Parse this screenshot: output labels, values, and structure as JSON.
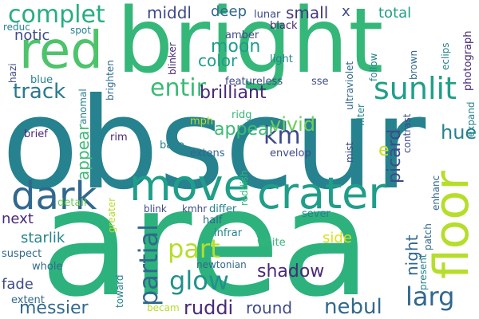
{
  "palette": {
    "dark_purple": "#482878",
    "deep_blue": "#3e4a89",
    "blue": "#31688e",
    "teal_blue": "#26828e",
    "teal": "#1f9e89",
    "green": "#35b779",
    "light_green": "#6ece58",
    "yellow_green": "#b5de2b",
    "bright_yellow": "#d8e219"
  },
  "words": [
    {
      "text": "obscur",
      "color": "#26828e"
    },
    {
      "text": "area",
      "color": "#2db27d"
    },
    {
      "text": "bright",
      "color": "#35b779"
    },
    {
      "text": "red",
      "color": "#4ec36b"
    },
    {
      "text": "floor",
      "color": "#b5de2b"
    },
    {
      "text": "crater",
      "color": "#1f9e89"
    },
    {
      "text": "move",
      "color": "#1f9e89"
    },
    {
      "text": "dark",
      "color": "#31688e"
    },
    {
      "text": "complet",
      "color": "#27ad81"
    },
    {
      "text": "sunlit",
      "color": "#1f9e89"
    },
    {
      "text": "entir",
      "color": "#3bbb75"
    },
    {
      "text": "partial",
      "color": "#31688e"
    },
    {
      "text": "part",
      "color": "#b5de2b"
    },
    {
      "text": "glow",
      "color": "#21918c"
    },
    {
      "text": "larg",
      "color": "#31688e"
    },
    {
      "text": "km",
      "color": "#3e4a89"
    },
    {
      "text": "vivid",
      "color": "#6ece58"
    },
    {
      "text": "brilliant",
      "color": "#482878"
    },
    {
      "text": "track",
      "color": "#2a788e"
    },
    {
      "text": "moon",
      "color": "#1f9e89"
    },
    {
      "text": "color",
      "color": "#1f9e89"
    },
    {
      "text": "middl",
      "color": "#3e4a89"
    },
    {
      "text": "deep",
      "color": "#31688e"
    },
    {
      "text": "small",
      "color": "#443983"
    },
    {
      "text": "total",
      "color": "#1f9e89"
    },
    {
      "text": "notic",
      "color": "#3e4a89"
    },
    {
      "text": "appear",
      "color": "#3bbb75"
    },
    {
      "text": "hue",
      "color": "#26828e"
    },
    {
      "text": "two",
      "color": "#482878"
    },
    {
      "text": "picard",
      "color": "#3e4a89"
    },
    {
      "text": "night",
      "color": "#31688e"
    },
    {
      "text": "shadow",
      "color": "#482878"
    },
    {
      "text": "nebul",
      "color": "#31688e"
    },
    {
      "text": "round",
      "color": "#3e4a89"
    },
    {
      "text": "ruddi",
      "color": "#482878"
    },
    {
      "text": "messier",
      "color": "#31688e"
    },
    {
      "text": "fade",
      "color": "#3e4a89"
    },
    {
      "text": "starlik",
      "color": "#26828e"
    },
    {
      "text": "next",
      "color": "#482878"
    },
    {
      "text": "side",
      "color": "#d8e219"
    },
    {
      "text": "x",
      "color": "#3e4a89"
    },
    {
      "text": "e",
      "color": "#c8e020"
    },
    {
      "text": "lunar",
      "color": "#3e4a89"
    },
    {
      "text": "black",
      "color": "#482878"
    },
    {
      "text": "amber",
      "color": "#3e4a89"
    },
    {
      "text": "light",
      "color": "#26828e"
    },
    {
      "text": "featureless",
      "color": "#3e4a89"
    },
    {
      "text": "sse",
      "color": "#3e4a89"
    },
    {
      "text": "ridg",
      "color": "#35b779"
    },
    {
      "text": "mph",
      "color": "#b5de2b"
    },
    {
      "text": "envelop",
      "color": "#3e4a89"
    },
    {
      "text": "base",
      "color": "#26828e"
    },
    {
      "text": "extens",
      "color": "#31688e"
    },
    {
      "text": "blink",
      "color": "#3e4a89"
    },
    {
      "text": "kmhr",
      "color": "#3e4a89"
    },
    {
      "text": "differ",
      "color": "#26828e"
    },
    {
      "text": "half",
      "color": "#31688e"
    },
    {
      "text": "infrar",
      "color": "#26828e"
    },
    {
      "text": "white",
      "color": "#35b779"
    },
    {
      "text": "newtonian",
      "color": "#31688e"
    },
    {
      "text": "sever",
      "color": "#26828e"
    },
    {
      "text": "becam",
      "color": "#b5de2b"
    },
    {
      "text": "toward",
      "color": "#26828e"
    },
    {
      "text": "greater",
      "color": "#b5de2b"
    },
    {
      "text": "reddish",
      "color": "#35b779"
    },
    {
      "text": "brief",
      "color": "#482878"
    },
    {
      "text": "rim",
      "color": "#482878"
    },
    {
      "text": "detail",
      "color": "#6ece58"
    },
    {
      "text": "suspect",
      "color": "#31688e"
    },
    {
      "text": "whole",
      "color": "#31688e"
    },
    {
      "text": "extent",
      "color": "#31688e"
    },
    {
      "text": "reduc",
      "color": "#26828e"
    },
    {
      "text": "spot",
      "color": "#26828e"
    },
    {
      "text": "hazi",
      "color": "#3e4a89"
    },
    {
      "text": "blue",
      "color": "#26828e"
    },
    {
      "text": "anomal",
      "color": "#26828e"
    },
    {
      "text": "brighten",
      "color": "#31688e"
    },
    {
      "text": "blinker",
      "color": "#482878"
    },
    {
      "text": "ultraviolet",
      "color": "#31688e"
    },
    {
      "text": "filter",
      "color": "#26828e"
    },
    {
      "text": "mist",
      "color": "#3e4a89"
    },
    {
      "text": "contrast",
      "color": "#3e4a89"
    },
    {
      "text": "follow",
      "color": "#26828e"
    },
    {
      "text": "eclips",
      "color": "#26828e"
    },
    {
      "text": "brown",
      "color": "#31688e"
    },
    {
      "text": "photograph",
      "color": "#482878"
    },
    {
      "text": "expand",
      "color": "#26828e"
    },
    {
      "text": "enhanc",
      "color": "#31688e"
    },
    {
      "text": "patch",
      "color": "#31688e"
    },
    {
      "text": "present",
      "color": "#26828e"
    }
  ]
}
